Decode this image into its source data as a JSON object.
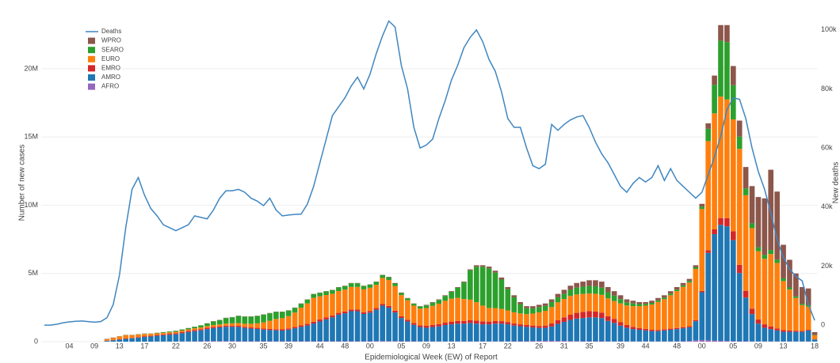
{
  "chart_data": {
    "type": "bar",
    "stacked": true,
    "x_label": "Epidemiological Week (EW) of Report",
    "y_label": "Number of new cases",
    "y2_label": "New deaths",
    "legend": "upper left",
    "grid": true,
    "categories": [
      null,
      null,
      null,
      null,
      "04",
      null,
      null,
      null,
      "09",
      null,
      null,
      null,
      "13",
      null,
      null,
      null,
      "17",
      null,
      null,
      null,
      null,
      "22",
      null,
      null,
      null,
      null,
      "26",
      null,
      null,
      null,
      "30",
      null,
      null,
      null,
      null,
      "35",
      null,
      null,
      null,
      "39",
      null,
      null,
      null,
      null,
      "44",
      null,
      null,
      null,
      "48",
      null,
      null,
      null,
      "00",
      null,
      null,
      null,
      null,
      "05",
      null,
      null,
      null,
      "09",
      null,
      null,
      null,
      "13",
      null,
      null,
      null,
      null,
      "17",
      null,
      null,
      null,
      "22",
      null,
      null,
      null,
      null,
      "26",
      null,
      null,
      null,
      "31",
      null,
      null,
      null,
      "35",
      null,
      null,
      null,
      null,
      "39",
      null,
      null,
      null,
      "44",
      null,
      null,
      null,
      null,
      "48",
      null,
      null,
      null,
      "00",
      null,
      null,
      null,
      null,
      "05",
      null,
      null,
      null,
      "09",
      null,
      null,
      null,
      "13",
      null,
      null,
      null,
      null,
      "18"
    ],
    "ylim": [
      0,
      23.3
    ],
    "yticks": [
      0,
      {
        "value": 5,
        "label": "5M"
      },
      {
        "value": 10,
        "label": "10M"
      },
      {
        "value": 15,
        "label": "15M"
      },
      {
        "value": 20,
        "label": "20M"
      }
    ],
    "y2lim": [
      -5.6,
      102.1
    ],
    "y2ticks": [
      0,
      {
        "value": 20,
        "label": "20k"
      },
      {
        "value": 40,
        "label": "40k"
      },
      {
        "value": 60,
        "label": "60k"
      },
      {
        "value": 80,
        "label": "80k"
      },
      {
        "value": 100,
        "label": "100k"
      }
    ],
    "series": [
      {
        "name": "AFRO",
        "color": "#9467bd",
        "values": [
          0,
          0,
          0,
          0,
          0,
          0,
          0,
          0,
          0,
          0,
          0,
          0,
          0,
          0,
          0,
          0,
          0,
          0,
          0.01,
          0.01,
          0.01,
          0.01,
          0.02,
          0.02,
          0.02,
          0.03,
          0.04,
          0.04,
          0.04,
          0.04,
          0.04,
          0.03,
          0.03,
          0.03,
          0.03,
          0.03,
          0.03,
          0.03,
          0.03,
          0.03,
          0.03,
          0.03,
          0.03,
          0.03,
          0.03,
          0.03,
          0.03,
          0.03,
          0.03,
          0.03,
          0.03,
          0.03,
          0.03,
          0.04,
          0.04,
          0.04,
          0.04,
          0.03,
          0.03,
          0.03,
          0.02,
          0.02,
          0.02,
          0.02,
          0.02,
          0.02,
          0.02,
          0.02,
          0.02,
          0.02,
          0.02,
          0.02,
          0.02,
          0.02,
          0.02,
          0.03,
          0.03,
          0.03,
          0.04,
          0.05,
          0.06,
          0.06,
          0.05,
          0.05,
          0.04,
          0.04,
          0.03,
          0.03,
          0.03,
          0.03,
          0.02,
          0.02,
          0.02,
          0.02,
          0.02,
          0.02,
          0.02,
          0.02,
          0.02,
          0.02,
          0.02,
          0.02,
          0.03,
          0.05,
          0.1,
          0.12,
          0.1,
          0.08,
          0.06,
          0.05,
          0.04,
          0.03,
          0.03,
          0.02,
          0.02,
          0.02,
          0.02,
          0.02,
          0.02,
          0.02,
          0.02,
          0.02,
          0.02,
          0.01
        ]
      },
      {
        "name": "AMRO",
        "color": "#1f77b4",
        "values": [
          0,
          0,
          0,
          0,
          0,
          0,
          0,
          0,
          0,
          0,
          0.05,
          0.1,
          0.15,
          0.2,
          0.25,
          0.3,
          0.35,
          0.38,
          0.42,
          0.46,
          0.5,
          0.53,
          0.6,
          0.68,
          0.75,
          0.8,
          0.88,
          0.95,
          1.0,
          1.05,
          1.05,
          1.05,
          0.98,
          0.93,
          0.9,
          0.85,
          0.82,
          0.8,
          0.78,
          0.85,
          0.95,
          1.05,
          1.15,
          1.3,
          1.45,
          1.6,
          1.75,
          1.95,
          2.05,
          2.2,
          2.2,
          2.0,
          2.1,
          2.3,
          2.6,
          2.45,
          2.1,
          1.7,
          1.45,
          1.2,
          1.05,
          1.0,
          1.05,
          1.1,
          1.2,
          1.25,
          1.3,
          1.3,
          1.35,
          1.3,
          1.25,
          1.25,
          1.3,
          1.3,
          1.25,
          1.15,
          1.1,
          1.05,
          1.0,
          0.95,
          0.95,
          1.05,
          1.25,
          1.4,
          1.55,
          1.65,
          1.7,
          1.75,
          1.75,
          1.7,
          1.5,
          1.35,
          1.15,
          1.0,
          0.9,
          0.85,
          0.8,
          0.75,
          0.75,
          0.8,
          0.85,
          0.9,
          0.95,
          1.0,
          1.4,
          3.5,
          6.4,
          7.8,
          8.5,
          8.4,
          7.4,
          5.0,
          3.2,
          2.0,
          1.3,
          1.0,
          0.9,
          0.8,
          0.7,
          0.7,
          0.7,
          0.7,
          0.8,
          0.15
        ]
      },
      {
        "name": "EMRO",
        "color": "#d62728",
        "values": [
          0,
          0,
          0,
          0,
          0,
          0,
          0,
          0,
          0,
          0,
          0.02,
          0.02,
          0.03,
          0.03,
          0.03,
          0.04,
          0.05,
          0.05,
          0.06,
          0.06,
          0.07,
          0.08,
          0.08,
          0.09,
          0.09,
          0.09,
          0.09,
          0.09,
          0.08,
          0.08,
          0.08,
          0.08,
          0.08,
          0.08,
          0.08,
          0.08,
          0.08,
          0.08,
          0.09,
          0.09,
          0.1,
          0.11,
          0.12,
          0.13,
          0.14,
          0.14,
          0.13,
          0.13,
          0.13,
          0.13,
          0.12,
          0.12,
          0.12,
          0.12,
          0.13,
          0.13,
          0.13,
          0.13,
          0.13,
          0.13,
          0.13,
          0.14,
          0.15,
          0.16,
          0.17,
          0.18,
          0.19,
          0.2,
          0.21,
          0.22,
          0.22,
          0.2,
          0.19,
          0.18,
          0.17,
          0.15,
          0.14,
          0.14,
          0.14,
          0.15,
          0.17,
          0.22,
          0.28,
          0.33,
          0.38,
          0.42,
          0.45,
          0.45,
          0.43,
          0.4,
          0.35,
          0.3,
          0.25,
          0.2,
          0.16,
          0.13,
          0.12,
          0.1,
          0.09,
          0.09,
          0.08,
          0.08,
          0.08,
          0.08,
          0.08,
          0.1,
          0.2,
          0.35,
          0.5,
          0.6,
          0.65,
          0.6,
          0.5,
          0.4,
          0.3,
          0.25,
          0.2,
          0.15,
          0.12,
          0.1,
          0.08,
          0.06,
          0.05,
          0.01
        ]
      },
      {
        "name": "EURO",
        "color": "#ff7f0e",
        "values": [
          0,
          0,
          0,
          0,
          0,
          0,
          0,
          0,
          0,
          0,
          0.1,
          0.15,
          0.2,
          0.25,
          0.2,
          0.18,
          0.17,
          0.14,
          0.12,
          0.11,
          0.1,
          0.1,
          0.11,
          0.11,
          0.12,
          0.12,
          0.13,
          0.14,
          0.14,
          0.15,
          0.17,
          0.2,
          0.22,
          0.27,
          0.33,
          0.45,
          0.6,
          0.75,
          0.82,
          0.9,
          1.05,
          1.3,
          1.5,
          1.75,
          1.7,
          1.65,
          1.6,
          1.6,
          1.6,
          1.65,
          1.66,
          1.68,
          1.7,
          1.7,
          1.9,
          1.9,
          1.8,
          1.55,
          1.42,
          1.28,
          1.22,
          1.3,
          1.4,
          1.5,
          1.6,
          1.7,
          1.7,
          1.6,
          1.5,
          1.35,
          1.15,
          1.0,
          0.95,
          0.9,
          0.85,
          0.82,
          0.8,
          0.8,
          0.88,
          1.0,
          1.08,
          1.2,
          1.3,
          1.35,
          1.38,
          1.35,
          1.32,
          1.3,
          1.3,
          1.3,
          1.3,
          1.3,
          1.38,
          1.43,
          1.52,
          1.6,
          1.7,
          1.85,
          2.05,
          2.2,
          2.45,
          2.7,
          2.95,
          3.2,
          3.75,
          6.0,
          8.0,
          8.5,
          8.9,
          8.7,
          8.2,
          8.5,
          7.0,
          5.9,
          5.0,
          4.8,
          5.3,
          4.8,
          3.6,
          3.0,
          2.4,
          1.9,
          1.7,
          0.3
        ]
      },
      {
        "name": "SEARO",
        "color": "#2ca02c",
        "values": [
          0,
          0,
          0,
          0,
          0,
          0,
          0,
          0,
          0,
          0,
          0,
          0,
          0.01,
          0.01,
          0.01,
          0.02,
          0.02,
          0.02,
          0.03,
          0.05,
          0.06,
          0.07,
          0.08,
          0.09,
          0.11,
          0.15,
          0.2,
          0.26,
          0.32,
          0.41,
          0.44,
          0.52,
          0.52,
          0.52,
          0.54,
          0.57,
          0.55,
          0.52,
          0.46,
          0.41,
          0.35,
          0.29,
          0.28,
          0.27,
          0.26,
          0.26,
          0.27,
          0.27,
          0.27,
          0.27,
          0.27,
          0.25,
          0.23,
          0.22,
          0.21,
          0.2,
          0.19,
          0.16,
          0.15,
          0.14,
          0.16,
          0.2,
          0.24,
          0.28,
          0.36,
          0.5,
          0.74,
          1.22,
          2.15,
          2.6,
          2.85,
          2.9,
          2.6,
          2.15,
          1.56,
          1.1,
          0.68,
          0.43,
          0.38,
          0.38,
          0.37,
          0.37,
          0.37,
          0.37,
          0.45,
          0.5,
          0.53,
          0.55,
          0.55,
          0.53,
          0.45,
          0.4,
          0.32,
          0.23,
          0.2,
          0.15,
          0.13,
          0.12,
          0.12,
          0.12,
          0.12,
          0.12,
          0.12,
          0.12,
          0.12,
          0.18,
          0.9,
          2.1,
          4.1,
          4.2,
          2.5,
          0.9,
          0.5,
          0.35,
          0.3,
          0.3,
          0.3,
          0.25,
          0.2,
          0.15,
          0.12,
          0.1,
          0.1,
          0.02
        ]
      },
      {
        "name": "WPRO",
        "color": "#8c564b",
        "values": [
          0,
          0,
          0,
          0,
          0,
          0,
          0,
          0,
          0,
          0,
          0.03,
          0.03,
          0.01,
          0.01,
          0.01,
          0.01,
          0.01,
          0.01,
          0.01,
          0.01,
          0.01,
          0.01,
          0.01,
          0.01,
          0.01,
          0.01,
          0.01,
          0.02,
          0.02,
          0.02,
          0.02,
          0.02,
          0.02,
          0.02,
          0.02,
          0.02,
          0.02,
          0.02,
          0.02,
          0.02,
          0.02,
          0.02,
          0.02,
          0.02,
          0.02,
          0.02,
          0.02,
          0.02,
          0.02,
          0.02,
          0.02,
          0.02,
          0.02,
          0.02,
          0.02,
          0.03,
          0.04,
          0.03,
          0.02,
          0.02,
          0.02,
          0.04,
          0.04,
          0.04,
          0.05,
          0.05,
          0.05,
          0.06,
          0.07,
          0.11,
          0.11,
          0.13,
          0.14,
          0.15,
          0.15,
          0.15,
          0.15,
          0.15,
          0.16,
          0.17,
          0.17,
          0.2,
          0.25,
          0.3,
          0.3,
          0.34,
          0.37,
          0.42,
          0.44,
          0.44,
          0.38,
          0.33,
          0.28,
          0.22,
          0.2,
          0.15,
          0.13,
          0.16,
          0.17,
          0.17,
          0.18,
          0.18,
          0.17,
          0.15,
          0.15,
          0.2,
          0.4,
          0.67,
          1.14,
          1.25,
          1.41,
          1.17,
          1.57,
          2.73,
          3.68,
          4.13,
          5.88,
          4.98,
          2.46,
          2.03,
          1.68,
          1.22,
          1.23,
          0.21
        ]
      },
      {
        "name": "Deaths",
        "type": "line",
        "axis": "y2",
        "color": "#3f86c0",
        "values": [
          0,
          0,
          0.3,
          0.8,
          1.1,
          1.3,
          1.4,
          1.2,
          1.0,
          1.2,
          2.5,
          7,
          17,
          33,
          46,
          50,
          44,
          39.5,
          37,
          34,
          33,
          32,
          33,
          34,
          37,
          36.5,
          36,
          39,
          43,
          45.5,
          45.5,
          46,
          45,
          43,
          42,
          40.5,
          43,
          39,
          37,
          37.3,
          37.5,
          37.6,
          41,
          47,
          55,
          63,
          71,
          74,
          77,
          81,
          84,
          80,
          85,
          92,
          98,
          103,
          101,
          88,
          80,
          67,
          60,
          61,
          63,
          70,
          76,
          83,
          88,
          94,
          97.5,
          100,
          96,
          90,
          86,
          79,
          70,
          67,
          67,
          60,
          54,
          53,
          54.5,
          68,
          66,
          68,
          69.5,
          70.5,
          71,
          67,
          62,
          58,
          55,
          51,
          47,
          45,
          48,
          50,
          48.5,
          50,
          54,
          49,
          53,
          49,
          47,
          45,
          43,
          45,
          51,
          57,
          64,
          73,
          77,
          76.5,
          70,
          60,
          52,
          46,
          38,
          29,
          23,
          19,
          16.5,
          15,
          7,
          1.6
        ]
      }
    ]
  }
}
